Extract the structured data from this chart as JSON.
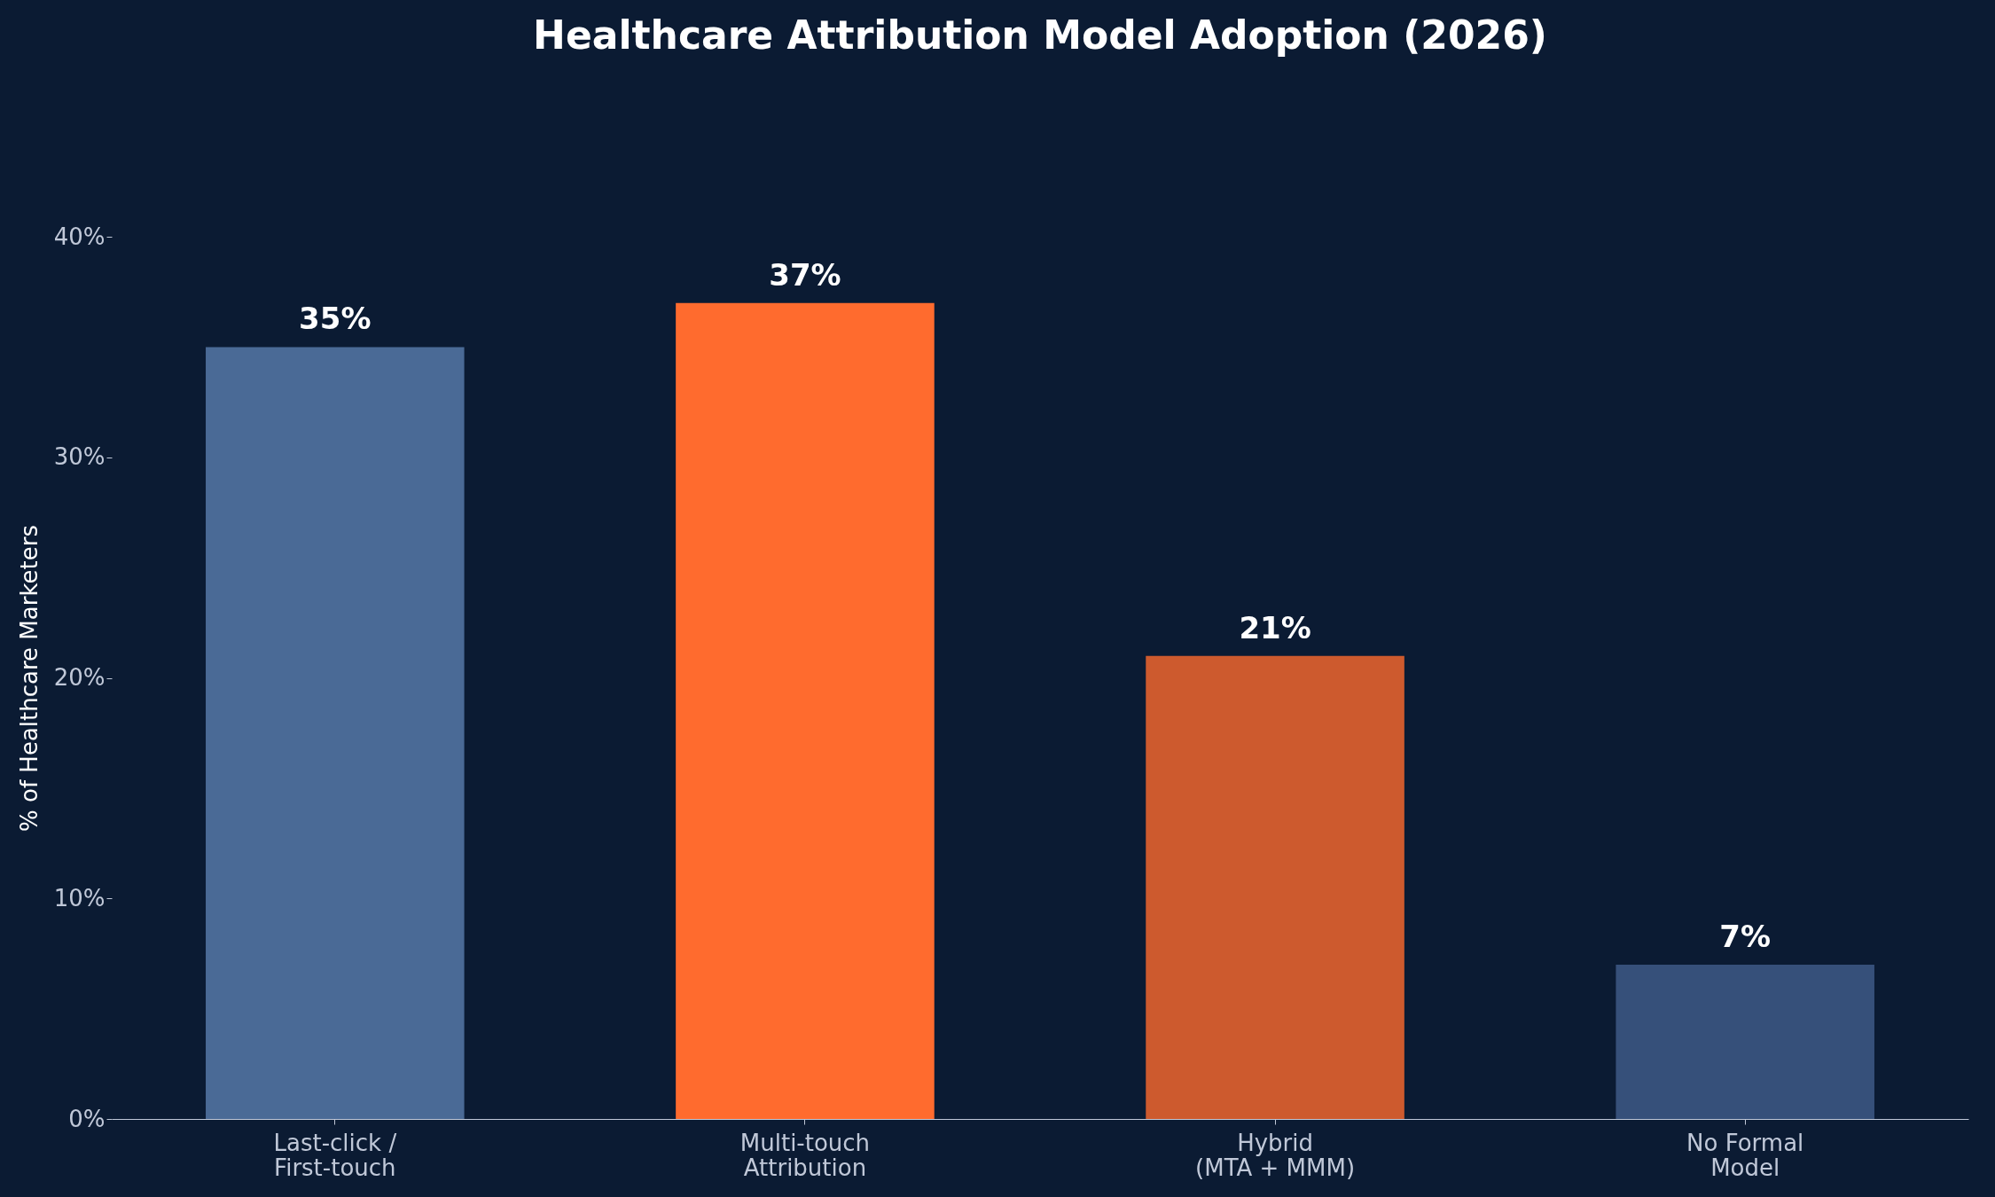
{
  "chart_data": {
    "type": "bar",
    "title": "Healthcare Attribution Model Adoption (2026)",
    "ylabel": "% of Healthcare Marketers",
    "categories": [
      "Last-click /\nFirst-touch",
      "Multi-touch\nAttribution",
      "Hybrid\n(MTA + MMM)",
      "No Formal\nModel"
    ],
    "values": [
      35,
      37,
      21,
      7
    ],
    "colors": [
      "#4a6a96",
      "#ff6b2e",
      "#cd5a2e",
      "#36507a"
    ],
    "value_labels": [
      "35%",
      "37%",
      "21%",
      "7%"
    ],
    "ylim": [
      0,
      40
    ],
    "yticks": [
      {
        "value": 0,
        "label": "0%"
      },
      {
        "value": 10,
        "label": "10%"
      },
      {
        "value": 20,
        "label": "20%"
      },
      {
        "value": 30,
        "label": "30%"
      },
      {
        "value": 40,
        "label": "40%"
      }
    ],
    "grid": false
  }
}
